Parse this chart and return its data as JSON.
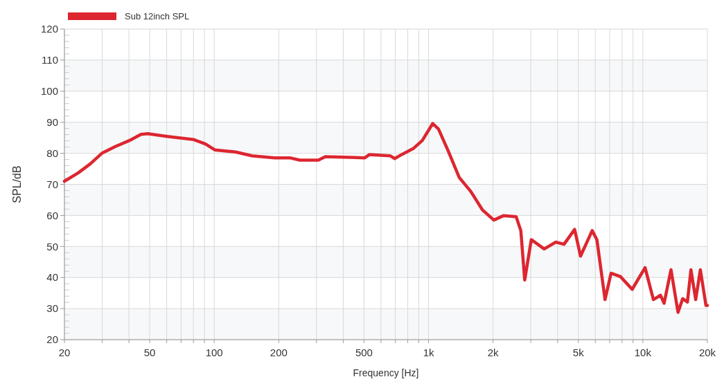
{
  "chart_data": {
    "type": "line",
    "xlabel": "Frequency [Hz]",
    "ylabel": "SPL/dB",
    "log": "x",
    "grid": true,
    "legend": "top left",
    "line_style": "solid",
    "marker": "none",
    "xlim": [
      20,
      20000
    ],
    "ylim": [
      20,
      120
    ],
    "xticks": [
      20,
      {
        "value": 30,
        "label": null
      },
      {
        "value": 40,
        "label": null
      },
      50,
      {
        "value": 60,
        "label": null
      },
      {
        "value": 70,
        "label": null
      },
      {
        "value": 80,
        "label": null
      },
      {
        "value": 90,
        "label": null
      },
      100,
      200,
      {
        "value": 300,
        "label": null
      },
      {
        "value": 400,
        "label": null
      },
      500,
      {
        "value": 600,
        "label": null
      },
      {
        "value": 700,
        "label": null
      },
      {
        "value": 800,
        "label": null
      },
      {
        "value": 900,
        "label": null
      },
      {
        "value": 1000,
        "label": "1k"
      },
      {
        "value": 2000,
        "label": "2k"
      },
      {
        "value": 3000,
        "label": null
      },
      {
        "value": 4000,
        "label": null
      },
      {
        "value": 5000,
        "label": "5k"
      },
      {
        "value": 6000,
        "label": null
      },
      {
        "value": 7000,
        "label": null
      },
      {
        "value": 8000,
        "label": null
      },
      {
        "value": 9000,
        "label": null
      },
      {
        "value": 10000,
        "label": "10k"
      },
      {
        "value": 20000,
        "label": "20k"
      }
    ],
    "yticks": [
      20,
      30,
      40,
      50,
      60,
      70,
      80,
      90,
      100,
      110,
      120
    ],
    "series": [
      {
        "name": "Sub 12inch SPL",
        "color": "#dd2630",
        "x": [
          20,
          23.2,
          26.4,
          29.9,
          34.6,
          40.2,
          45.5,
          48.9,
          59.6,
          80.3,
          91,
          100.6,
          126,
          150,
          192,
          227,
          251,
          306,
          330,
          433,
          503,
          530,
          662,
          695,
          749,
          848,
          935,
          1046,
          1113,
          1229,
          1391,
          1575,
          1783,
          2017,
          2233,
          2563,
          2695,
          2810,
          3016,
          3464,
          3925,
          4287,
          4803,
          5119,
          5803,
          6102,
          6662,
          7105,
          7860,
          8916,
          10240,
          11200,
          12090,
          12560,
          13530,
          14590,
          15340,
          16140,
          16760,
          17640,
          18550,
          19700,
          20000
        ],
        "values": [
          71,
          73.7,
          76.6,
          80,
          82.2,
          84.1,
          86.1,
          86.3,
          85.5,
          84.4,
          83,
          81.1,
          80.4,
          79.2,
          78.5,
          78.5,
          77.8,
          77.8,
          78.9,
          78.7,
          78.5,
          79.6,
          79.2,
          78.3,
          79.6,
          81.5,
          84.1,
          89.6,
          87.8,
          81.1,
          72.2,
          67.7,
          61.8,
          58.5,
          59.9,
          59.6,
          55.1,
          39.2,
          52.2,
          49.2,
          51.4,
          50.7,
          55.5,
          46.9,
          55.1,
          52.2,
          32.9,
          41.4,
          40.3,
          36.2,
          43.2,
          32.9,
          34.3,
          31.7,
          42.5,
          28.8,
          33.2,
          32.1,
          42.5,
          32.9,
          42.5,
          31,
          31
        ]
      }
    ]
  }
}
